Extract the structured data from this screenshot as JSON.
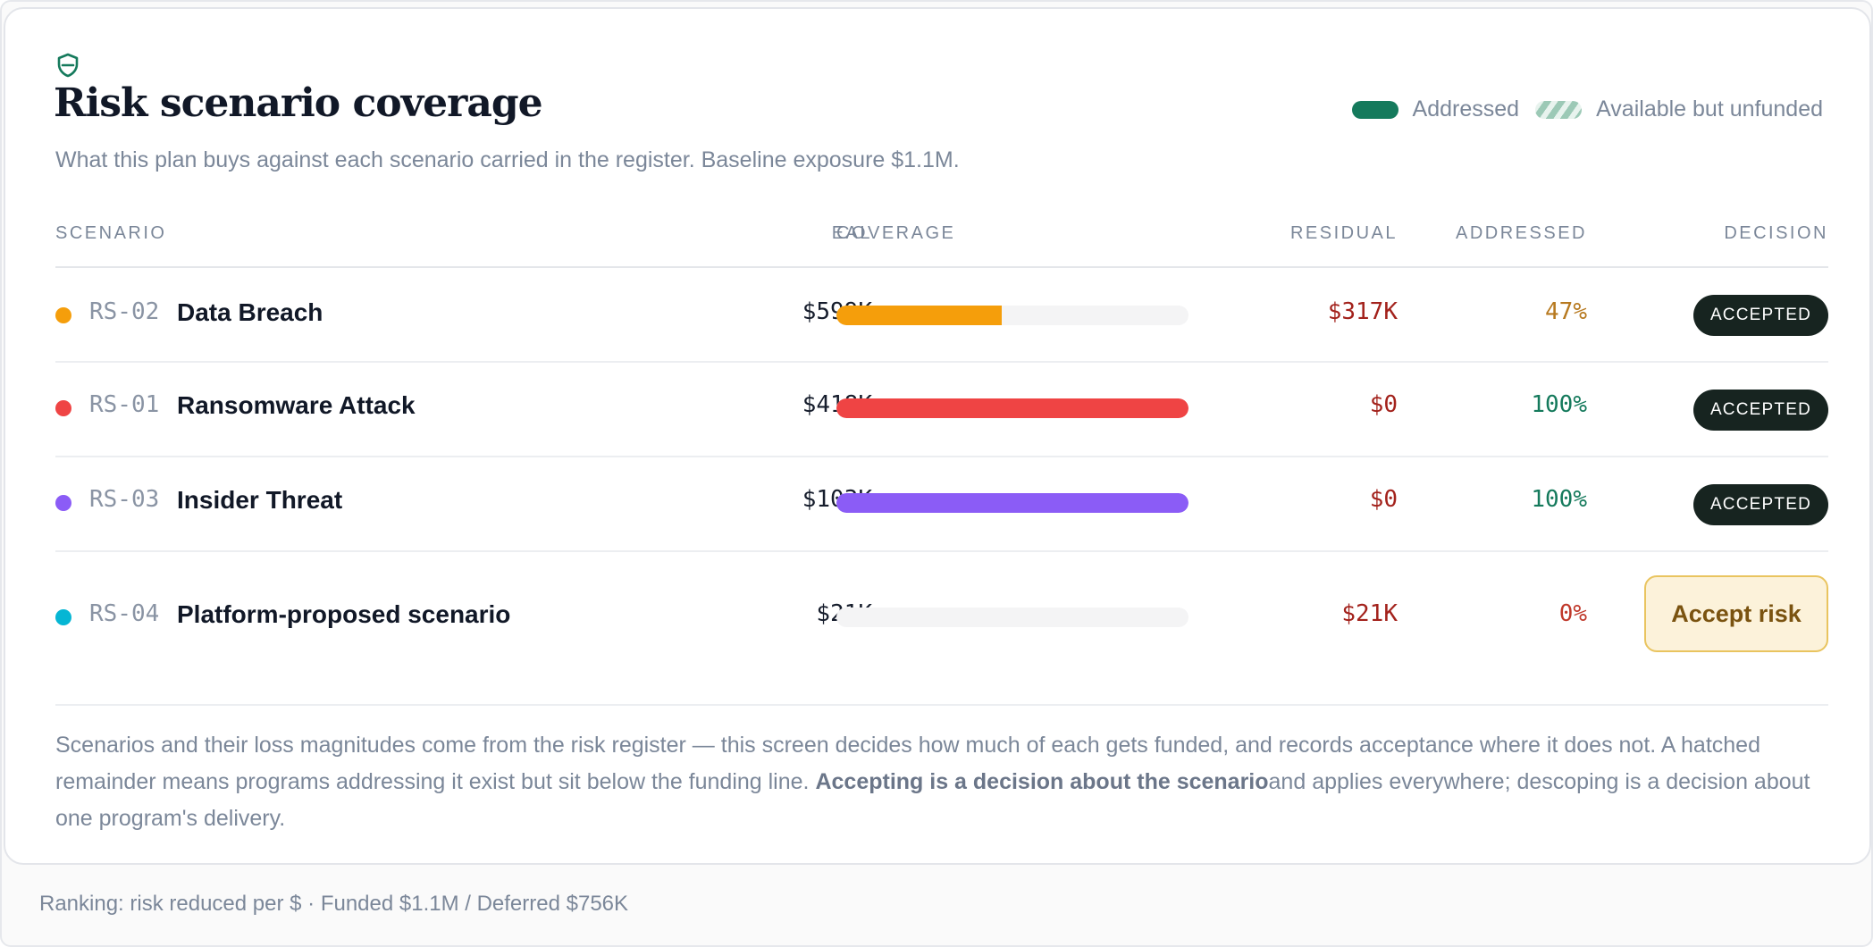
{
  "header": {
    "icon": "shield-icon",
    "title": "Risk scenario coverage",
    "subtitle": "What this plan buys against each scenario carried in the register. Baseline exposure $1.1M."
  },
  "legend": {
    "addressed_label": "Addressed",
    "unfunded_label": "Available but unfunded",
    "addressed_color": "#157a5c"
  },
  "table": {
    "columns": {
      "scenario": "SCENARIO",
      "eal": "EAL",
      "coverage": "COVERAGE",
      "residual": "RESIDUAL",
      "addressed": "ADDRESSED",
      "decision": "DECISION"
    },
    "rows": [
      {
        "color": "#f59e0b",
        "code": "RS-02",
        "name": "Data Breach",
        "eal": "$599K",
        "coverage_fraction": 0.47,
        "residual": "$317K",
        "addressed": "47%",
        "addressed_color": "#b7791f",
        "decision": "ACCEPTED"
      },
      {
        "color": "#ef4444",
        "code": "RS-01",
        "name": "Ransomware Attack",
        "eal": "$418K",
        "coverage_fraction": 1.0,
        "residual": "$0",
        "addressed": "100%",
        "addressed_color": "#157a5c",
        "decision": "ACCEPTED"
      },
      {
        "color": "#8b5cf6",
        "code": "RS-03",
        "name": "Insider Threat",
        "eal": "$103K",
        "coverage_fraction": 1.0,
        "residual": "$0",
        "addressed": "100%",
        "addressed_color": "#157a5c",
        "decision": "ACCEPTED"
      },
      {
        "color": "#06b6d4",
        "code": "RS-04",
        "name": "Platform-proposed scenario",
        "eal": "$21K",
        "coverage_fraction": 0.0,
        "residual": "$21K",
        "addressed": "0%",
        "addressed_color": "#c0392b",
        "decision_button": "Accept risk"
      }
    ]
  },
  "footnote": {
    "part1": "Scenarios and their loss magnitudes come from the risk register — this screen decides how much of each gets funded, and records acceptance where it does not. A hatched remainder means programs addressing it exist but sit below the funding line. ",
    "bold": "Accepting is a decision about the scenario",
    "part2": "and applies everywhere; descoping is a decision about one program's delivery."
  },
  "footer": {
    "text": "Ranking: risk reduced per $ · Funded $1.1M / Deferred $756K"
  }
}
